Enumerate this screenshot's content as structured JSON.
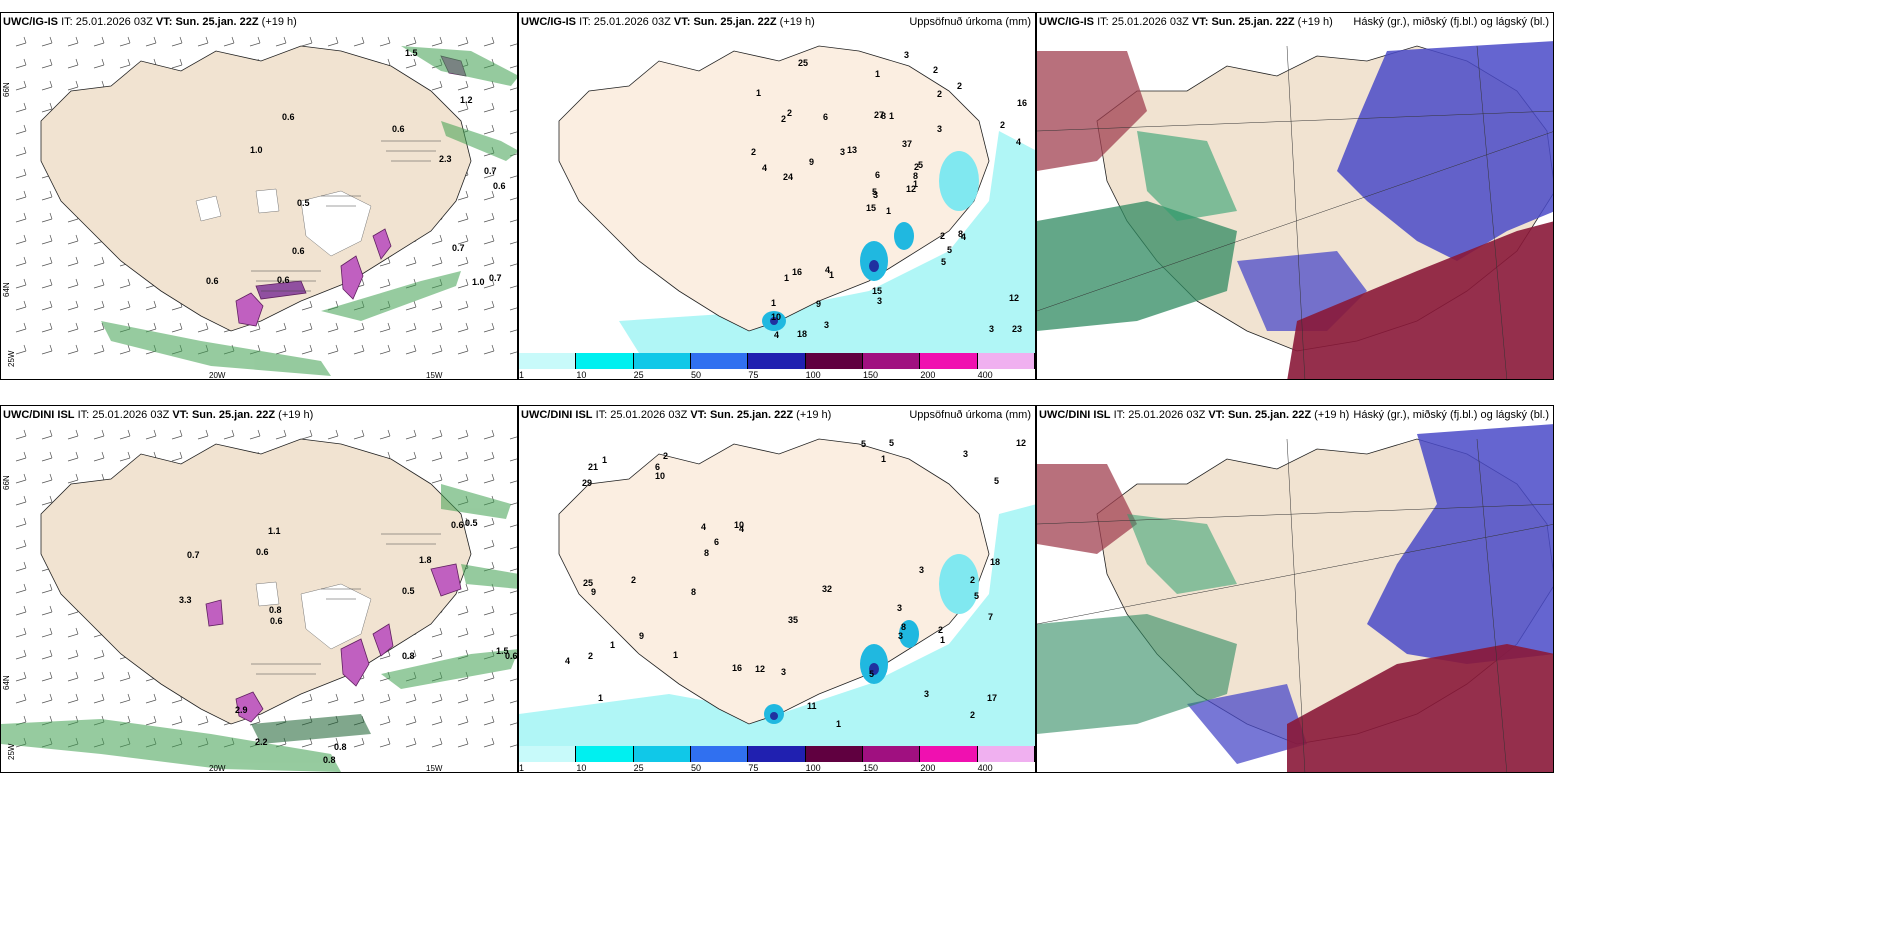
{
  "panels": {
    "p1": {
      "model": "UWC/IG-IS",
      "it_label": "IT:",
      "it": "25.01.2026 03Z",
      "vt_label": "VT:",
      "vt": "Sun. 25.jan. 22Z",
      "lead": "(+19 h)"
    },
    "p2": {
      "model": "UWC/IG-IS",
      "it_label": "IT:",
      "it": "25.01.2026 03Z",
      "vt_label": "VT:",
      "vt": "Sun. 25.jan. 22Z",
      "lead": "(+19 h)",
      "right_title": "Uppsöfnuð úrkoma (mm)"
    },
    "p3": {
      "model": "UWC/IG-IS",
      "it_label": "IT:",
      "it": "25.01.2026 03Z",
      "vt_label": "VT:",
      "vt": "Sun. 25.jan. 22Z",
      "lead": "(+19 h)",
      "right_title": "Háský (gr.), miðský (fj.bl.) og lágský (bl.)"
    },
    "p4": {
      "model": "UWC/DINI ISL",
      "it_label": "IT:",
      "it": "25.01.2026 03Z",
      "vt_label": "VT:",
      "vt": "Sun. 25.jan. 22Z",
      "lead": "(+19 h)"
    },
    "p5": {
      "model": "UWC/DINI ISL",
      "it_label": "IT:",
      "it": "25.01.2026 03Z",
      "vt_label": "VT:",
      "vt": "Sun. 25.jan. 22Z",
      "lead": "(+19 h)",
      "right_title": "Uppsöfnuð úrkoma (mm)"
    },
    "p6": {
      "model": "UWC/DINI ISL",
      "it_label": "IT:",
      "it": "25.01.2026 03Z",
      "vt_label": "VT:",
      "vt": "Sun. 25.jan. 22Z",
      "lead": "(+19 h)",
      "right_title": "Háský (gr.), miðský (fj.bl.) og lágský (bl.)"
    }
  },
  "axis_labels": {
    "lat_66": "66N",
    "lat_64": "64N",
    "lon_20": "20W",
    "lon_15": "15W",
    "lon_25": "25W"
  },
  "colorbar": {
    "ticks": [
      "1",
      "10",
      "25",
      "50",
      "75",
      "100",
      "150",
      "200",
      "400"
    ],
    "colors": [
      "#c8fafa",
      "#00f0f0",
      "#10c8e8",
      "#3070f0",
      "#2020b0",
      "#600040",
      "#a01080",
      "#f010b0",
      "#f0b0f0"
    ]
  },
  "precip_labels_top": [
    "1",
    "2",
    "3",
    "1",
    "2",
    "1",
    "2",
    "1",
    "2",
    "12",
    "25",
    "23",
    "24",
    "16",
    "15",
    "3",
    "18",
    "27",
    "37",
    "16",
    "13",
    "10",
    "9",
    "8",
    "5",
    "4",
    "2",
    "1",
    "4",
    "2",
    "4",
    "5",
    "15",
    "6",
    "6",
    "2",
    "4",
    "3",
    "12",
    "8",
    "3",
    "3",
    "9",
    "5",
    "3",
    "2",
    "8",
    "4",
    "3",
    "1",
    "1",
    "2",
    "1",
    "5"
  ],
  "precip_labels_bottom": [
    "3",
    "5",
    "1",
    "2",
    "4",
    "3",
    "2",
    "1",
    "4",
    "1",
    "29",
    "25",
    "21",
    "17",
    "16",
    "18",
    "35",
    "32",
    "10",
    "9",
    "12",
    "3",
    "8",
    "7",
    "5",
    "6",
    "8",
    "9",
    "10",
    "3",
    "11",
    "5",
    "6",
    "8",
    "2",
    "1",
    "3",
    "2",
    "3",
    "1",
    "5",
    "5",
    "2",
    "12",
    "2",
    "1",
    "4",
    "1"
  ],
  "wind_labels_top": [
    "0.6",
    "0.7",
    "0.6",
    "0.6",
    "0.5",
    "0.7",
    "0.6",
    "1.5",
    "1.0",
    "1.2",
    "1.0",
    "0.7",
    "2.3",
    "0.6",
    "0.6"
  ],
  "wind_labels_bottom": [
    "0.7",
    "0.6",
    "0.5",
    "0.8",
    "0.6",
    "0.8",
    "0.8",
    "0.6",
    "0.5",
    "0.6",
    "1.5",
    "1.1",
    "1.8",
    "2.9",
    "3.3",
    "2.2",
    "0.8"
  ]
}
